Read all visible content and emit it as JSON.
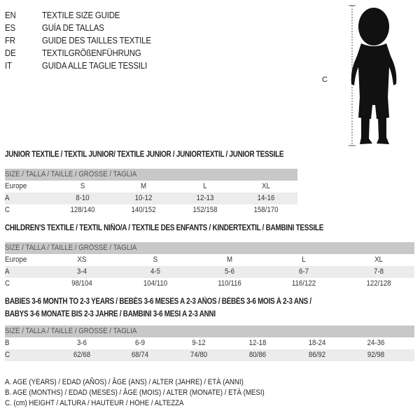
{
  "guide": [
    {
      "code": "EN",
      "title": "TEXTILE SIZE GUIDE"
    },
    {
      "code": "ES",
      "title": "GUÍA DE TALLAS"
    },
    {
      "code": "FR",
      "title": "GUIDE DES TAILLES TEXTILE"
    },
    {
      "code": "DE",
      "title": "TEXTILGRÖßENFÜHRUNG"
    },
    {
      "code": "IT",
      "title": "GUIDA ALLE TAGLIE TESSILI"
    }
  ],
  "figure": {
    "label": "C"
  },
  "size_header": "SIZE / TALLA / TAILLE / GRÖSSE / TAGLIA",
  "junior": {
    "heading": "JUNIOR TEXTILE / TEXTIL JUNIOR/ TEXTILE JUNIOR / JUNIORTEXTIL / JUNIOR TESSILE",
    "rows": [
      {
        "label": "Europe",
        "values": [
          "S",
          "M",
          "L",
          "XL"
        ]
      },
      {
        "label": "A",
        "values": [
          "8-10",
          "10-12",
          "12-13",
          "14-16"
        ]
      },
      {
        "label": "C",
        "values": [
          "128/140",
          "140/152",
          "152/158",
          "158/170"
        ]
      }
    ]
  },
  "children": {
    "heading": "CHILDREN'S TEXTILE / TEXTIL NIÑO/A / TEXTILE DES ENFANTS / KINDERTEXTIL / BAMBINI TESSILE",
    "rows": [
      {
        "label": "Europe",
        "values": [
          "XS",
          "S",
          "M",
          "L",
          "XL"
        ]
      },
      {
        "label": "A",
        "values": [
          "3-4",
          "4-5",
          "5-6",
          "6-7",
          "7-8"
        ]
      },
      {
        "label": "C",
        "values": [
          "98/104",
          "104/110",
          "110/116",
          "116/122",
          "122/128"
        ]
      }
    ]
  },
  "babies": {
    "heading_1": "BABIES 3-6 MONTH TO 2-3 YEARS / BEBÉS 3-6 MESES A 2-3 AÑOS / BÉBÉS 3-6 MOIS À 2-3 ANS /",
    "heading_2": "BABYS 3-6 MONATE BIS 2-3 JAHRE / BAMBINI 3-6 MESI A 2-3 ANNI",
    "rows": [
      {
        "label": "B",
        "values": [
          "3-6",
          "6-9",
          "9-12",
          "12-18",
          "18-24",
          "24-36"
        ]
      },
      {
        "label": "C",
        "values": [
          "62/68",
          "68/74",
          "74/80",
          "80/86",
          "86/92",
          "92/98"
        ]
      }
    ]
  },
  "legend": [
    "A. AGE (YEARS) / EDAD (AÑOS) / ÂGE (ANS) / ALTER (JAHRE) / ETÀ (ANNI)",
    "B. AGE (MONTHS) / EDAD (MESES) / ÂGE (MOIS) / ALTER (MONATE) / ETÀ (MESI)",
    "C. (cm) HEIGHT / ALTURA / HAUTEUR / HÖHE / ALTEZZA"
  ]
}
